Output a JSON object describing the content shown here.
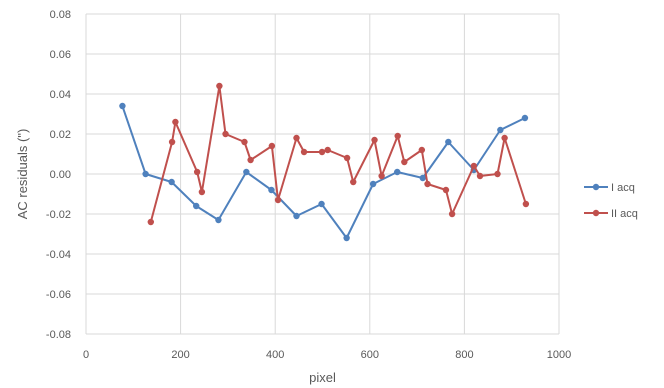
{
  "chart_data": {
    "type": "line",
    "title": "",
    "xlabel": "pixel",
    "ylabel": "AC residuals (\")",
    "xlim": [
      0,
      1000
    ],
    "ylim": [
      -0.08,
      0.08
    ],
    "x_ticks": [
      0,
      200,
      400,
      600,
      800,
      1000
    ],
    "y_ticks": [
      -0.08,
      -0.06,
      -0.04,
      -0.02,
      0.0,
      0.02,
      0.04,
      0.06,
      0.08
    ],
    "x_tick_labels": [
      "0",
      "200",
      "400",
      "600",
      "800",
      "1000"
    ],
    "y_tick_labels": [
      "-0.08",
      "-0.06",
      "-0.04",
      "-0.02",
      "0.00",
      "0.02",
      "0.04",
      "0.06",
      "0.08"
    ],
    "grid": "vertical and horizontal",
    "legend_position": "right",
    "series": [
      {
        "name": "I acq",
        "color": "#4f81bd",
        "x": [
          77,
          126,
          181,
          233,
          280,
          339,
          392,
          445,
          498,
          551,
          607,
          658,
          712,
          766,
          820,
          876,
          928
        ],
        "y": [
          0.034,
          0.0,
          -0.004,
          -0.016,
          -0.023,
          0.001,
          -0.008,
          -0.021,
          -0.015,
          -0.032,
          -0.005,
          0.001,
          -0.002,
          0.016,
          0.002,
          0.022,
          0.028
        ]
      },
      {
        "name": "II acq",
        "color": "#c0504d",
        "x": [
          137,
          182,
          189,
          235,
          245,
          282,
          295,
          335,
          348,
          393,
          406,
          445,
          461,
          499,
          511,
          552,
          565,
          610,
          625,
          659,
          673,
          710,
          722,
          761,
          774,
          820,
          833,
          870,
          885,
          930
        ],
        "y": [
          -0.024,
          0.016,
          0.026,
          0.001,
          -0.009,
          0.044,
          0.02,
          0.016,
          0.007,
          0.014,
          -0.013,
          0.018,
          0.011,
          0.011,
          0.012,
          0.008,
          -0.004,
          0.017,
          -0.001,
          0.019,
          0.006,
          0.012,
          -0.005,
          -0.008,
          -0.02,
          0.004,
          -0.001,
          0.0,
          0.018,
          -0.015
        ]
      }
    ]
  }
}
